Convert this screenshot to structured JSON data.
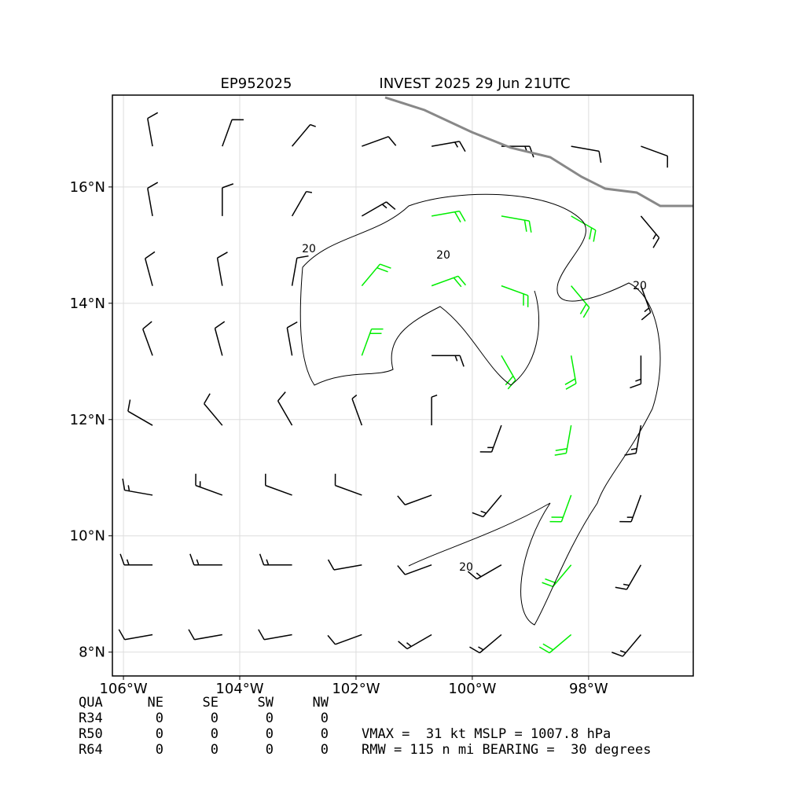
{
  "map": {
    "type": "wind-barbs",
    "title_left": "EP952025",
    "title_right": "INVEST 2025 29 Jun 21UTC",
    "xlim": [
      -106.19,
      -96.2
    ],
    "ylim": [
      7.59,
      17.58
    ],
    "xticks": [
      {
        "value": -106,
        "label": "106°W"
      },
      {
        "value": -104,
        "label": "104°W"
      },
      {
        "value": -102,
        "label": "102°W"
      },
      {
        "value": -100,
        "label": "100°W"
      },
      {
        "value": -98,
        "label": "98°W"
      }
    ],
    "yticks": [
      {
        "value": 8,
        "label": "8°N"
      },
      {
        "value": 10,
        "label": "10°N"
      },
      {
        "value": 12,
        "label": "12°N"
      },
      {
        "value": 14,
        "label": "14°N"
      },
      {
        "value": 16,
        "label": "16°N"
      }
    ],
    "grid": true,
    "contour_label": "20",
    "colors": {
      "low": "#000000",
      "high": "#00ee00"
    },
    "highlight_kt": 20,
    "barbs": {
      "lons": [
        -105.5,
        -104.3,
        -103.1,
        -101.9,
        -100.7,
        -99.5,
        -98.3,
        -97.1
      ],
      "lats": [
        16.7,
        15.5,
        14.3,
        13.1,
        11.9,
        10.7,
        9.5,
        8.3
      ],
      "direction": [
        [
          350,
          20,
          40,
          70,
          80,
          90,
          100,
          110
        ],
        [
          350,
          360,
          30,
          60,
          80,
          100,
          120,
          140
        ],
        [
          345,
          350,
          10,
          40,
          70,
          110,
          140,
          160
        ],
        [
          340,
          345,
          350,
          20,
          90,
          150,
          170,
          180
        ],
        [
          300,
          320,
          330,
          340,
          0,
          200,
          190,
          190
        ],
        [
          280,
          290,
          290,
          290,
          250,
          220,
          200,
          200
        ],
        [
          270,
          270,
          270,
          260,
          250,
          240,
          220,
          210
        ],
        [
          260,
          260,
          260,
          250,
          240,
          230,
          230,
          220
        ]
      ],
      "speed": [
        [
          12,
          10,
          8,
          10,
          15,
          15,
          12,
          12
        ],
        [
          12,
          10,
          8,
          15,
          22,
          24,
          20,
          15
        ],
        [
          12,
          10,
          10,
          22,
          24,
          24,
          22,
          18
        ],
        [
          12,
          12,
          14,
          20,
          15,
          22,
          24,
          18
        ],
        [
          14,
          12,
          10,
          8,
          5,
          15,
          20,
          18
        ],
        [
          16,
          15,
          12,
          10,
          10,
          15,
          22,
          16
        ],
        [
          16,
          16,
          15,
          14,
          14,
          18,
          22,
          16
        ],
        [
          14,
          14,
          14,
          14,
          16,
          18,
          22,
          16
        ]
      ]
    }
  },
  "table": {
    "header": [
      "QUA",
      "NE",
      "SE",
      "SW",
      "NW"
    ],
    "rows": [
      [
        "R34",
        "0",
        "0",
        "0",
        "0"
      ],
      [
        "R50",
        "0",
        "0",
        "0",
        "0"
      ],
      [
        "R64",
        "0",
        "0",
        "0",
        "0"
      ]
    ]
  },
  "info": [
    "VMAX =  31 kt MSLP = 1007.8 hPa",
    "RMW = 115 n mi BEARING =  30 degrees"
  ]
}
